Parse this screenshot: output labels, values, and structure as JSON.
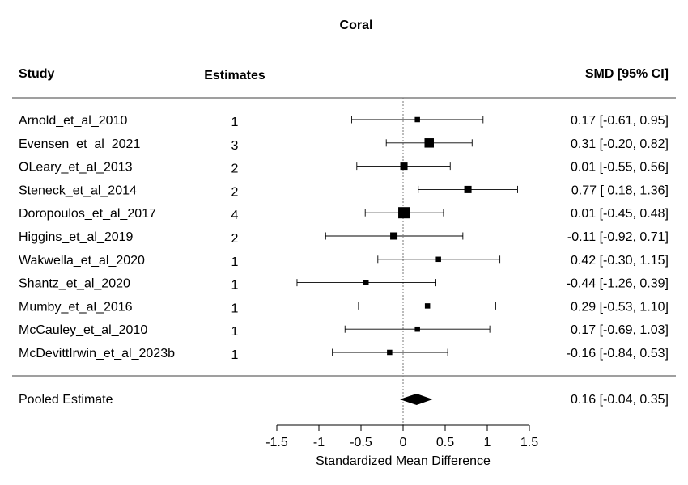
{
  "chart_data": {
    "type": "forest",
    "title": "Coral",
    "columns": {
      "study": "Study",
      "estimates": "Estimates",
      "ci": "SMD [95% CI]"
    },
    "rows": [
      {
        "study": "Arnold_et_al_2010",
        "estimates": "1",
        "smd": 0.17,
        "lo": -0.61,
        "hi": 0.95,
        "ci_text": "0.17 [-0.61, 0.95]"
      },
      {
        "study": "Evensen_et_al_2021",
        "estimates": "3",
        "smd": 0.31,
        "lo": -0.2,
        "hi": 0.82,
        "ci_text": "0.31 [-0.20, 0.82]"
      },
      {
        "study": "OLeary_et_al_2013",
        "estimates": "2",
        "smd": 0.01,
        "lo": -0.55,
        "hi": 0.56,
        "ci_text": "0.01 [-0.55, 0.56]"
      },
      {
        "study": "Steneck_et_al_2014",
        "estimates": "2",
        "smd": 0.77,
        "lo": 0.18,
        "hi": 1.36,
        "ci_text": "0.77 [ 0.18, 1.36]"
      },
      {
        "study": "Doropoulos_et_al_2017",
        "estimates": "4",
        "smd": 0.01,
        "lo": -0.45,
        "hi": 0.48,
        "ci_text": "0.01 [-0.45, 0.48]"
      },
      {
        "study": "Higgins_et_al_2019",
        "estimates": "2",
        "smd": -0.11,
        "lo": -0.92,
        "hi": 0.71,
        "ci_text": "-0.11 [-0.92, 0.71]"
      },
      {
        "study": "Wakwella_et_al_2020",
        "estimates": "1",
        "smd": 0.42,
        "lo": -0.3,
        "hi": 1.15,
        "ci_text": "0.42 [-0.30, 1.15]"
      },
      {
        "study": "Shantz_et_al_2020",
        "estimates": "1",
        "smd": -0.44,
        "lo": -1.26,
        "hi": 0.39,
        "ci_text": "-0.44 [-1.26, 0.39]"
      },
      {
        "study": "Mumby_et_al_2016",
        "estimates": "1",
        "smd": 0.29,
        "lo": -0.53,
        "hi": 1.1,
        "ci_text": "0.29 [-0.53, 1.10]"
      },
      {
        "study": "McCauley_et_al_2010",
        "estimates": "1",
        "smd": 0.17,
        "lo": -0.69,
        "hi": 1.03,
        "ci_text": "0.17 [-0.69, 1.03]"
      },
      {
        "study": "McDevittIrwin_et_al_2023b",
        "estimates": "1",
        "smd": -0.16,
        "lo": -0.84,
        "hi": 0.53,
        "ci_text": "-0.16 [-0.84, 0.53]"
      }
    ],
    "pooled": {
      "label": "Pooled Estimate",
      "smd": 0.16,
      "lo": -0.04,
      "hi": 0.35,
      "ci_text": "0.16 [-0.04, 0.35]"
    },
    "xlabel": "Standardized Mean Difference",
    "xlim": [
      -1.5,
      1.5
    ],
    "xticks": [
      -1.5,
      -1,
      -0.5,
      0,
      0.5,
      1,
      1.5
    ],
    "xtick_labels": [
      "-1.5",
      "-1",
      "-0.5",
      "0",
      "0.5",
      "1",
      "1.5"
    ],
    "reference_line": 0,
    "grid": false,
    "colors": {
      "marker": "#000000",
      "line": "#000000",
      "rule": "#666666",
      "reference": "#777777"
    }
  }
}
